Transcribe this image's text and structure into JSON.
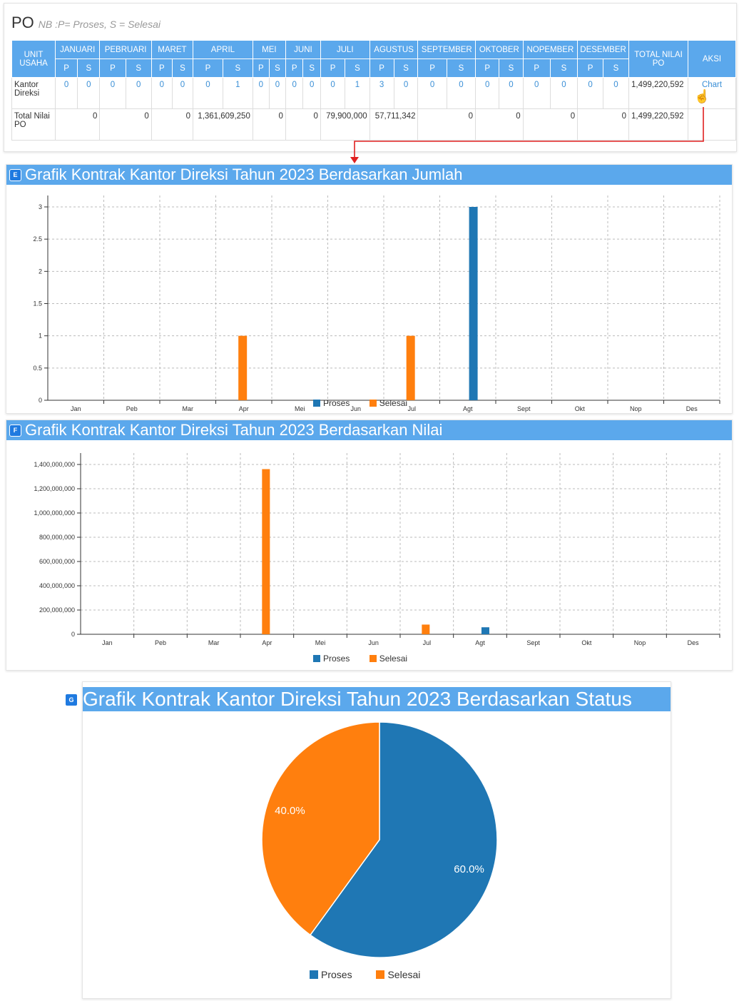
{
  "po": {
    "title": "PO",
    "note": "NB :P= Proses, S = Selesai",
    "unit_header": "UNIT USAHA",
    "months": [
      "JANUARI",
      "PEBRUARI",
      "MARET",
      "APRIL",
      "MEI",
      "JUNI",
      "JULI",
      "AGUSTUS",
      "SEPTEMBER",
      "OKTOBER",
      "NOPEMBER",
      "DESEMBER"
    ],
    "p_label": "P",
    "s_label": "S",
    "total_header": "TOTAL NILAI PO",
    "aksi_header": "AKSI",
    "row1_label": "Kantor Direksi",
    "row1_values": [
      "0",
      "0",
      "0",
      "0",
      "0",
      "0",
      "0",
      "1",
      "0",
      "0",
      "0",
      "0",
      "0",
      "1",
      "3",
      "0",
      "0",
      "0",
      "0",
      "0",
      "0",
      "0",
      "0",
      "0"
    ],
    "row1_total": "1,499,220,592",
    "row1_action": "Chart",
    "row2_label": "Total Nilai PO",
    "row2_values": [
      "0",
      "0",
      "0",
      "1,361,609,250",
      "0",
      "0",
      "79,900,000",
      "57,711,342",
      "0",
      "0",
      "0",
      "0"
    ],
    "row2_total": "1,499,220,592"
  },
  "panels": {
    "jumlah": {
      "badge": "E",
      "title": "Grafik Kontrak Kantor Direksi Tahun 2023 Berdasarkan Jumlah"
    },
    "nilai": {
      "badge": "F",
      "title": "Grafik Kontrak Kantor Direksi Tahun 2023 Berdasarkan Nilai"
    },
    "status": {
      "badge": "G",
      "title": "Grafik Kontrak Kantor Direksi Tahun 2023 Berdasarkan Status"
    }
  },
  "colors": {
    "proses": "#1f77b4",
    "selesai": "#ff7f0e",
    "header": "#5ba8ec",
    "arrow": "#e02020"
  },
  "legend": {
    "proses": "Proses",
    "selesai": "Selesai"
  },
  "chart_data": [
    {
      "type": "bar",
      "categories": [
        "Jan",
        "Peb",
        "Mar",
        "Apr",
        "Mei",
        "Jun",
        "Jul",
        "Agt",
        "Sept",
        "Okt",
        "Nop",
        "Des"
      ],
      "series": [
        {
          "name": "Proses",
          "values": [
            0,
            0,
            0,
            0,
            0,
            0,
            0,
            3,
            0,
            0,
            0,
            0
          ]
        },
        {
          "name": "Selesai",
          "values": [
            0,
            0,
            0,
            1,
            0,
            0,
            1,
            0,
            0,
            0,
            0,
            0
          ]
        }
      ],
      "ylim": [
        0,
        3
      ],
      "yticks": [
        "0",
        "0.5",
        "1",
        "1.5",
        "2",
        "2.5",
        "3"
      ],
      "grid": true,
      "legend_position": "bottom"
    },
    {
      "type": "bar",
      "categories": [
        "Jan",
        "Peb",
        "Mar",
        "Apr",
        "Mei",
        "Jun",
        "Jul",
        "Agt",
        "Sept",
        "Okt",
        "Nop",
        "Des"
      ],
      "series": [
        {
          "name": "Proses",
          "values": [
            0,
            0,
            0,
            0,
            0,
            0,
            0,
            57711342,
            0,
            0,
            0,
            0
          ]
        },
        {
          "name": "Selesai",
          "values": [
            0,
            0,
            0,
            1361609250,
            0,
            0,
            79900000,
            0,
            0,
            0,
            0,
            0
          ]
        }
      ],
      "ylim": [
        0,
        1400000000
      ],
      "yticks": [
        "0",
        "200,000,000",
        "400,000,000",
        "600,000,000",
        "800,000,000",
        "1,000,000,000",
        "1,200,000,000",
        "1,400,000,000"
      ],
      "grid": true,
      "legend_position": "bottom"
    },
    {
      "type": "pie",
      "labels": [
        "Proses",
        "Selesai"
      ],
      "values": [
        60.0,
        40.0
      ],
      "value_labels": [
        "60.0%",
        "40.0%"
      ],
      "legend_position": "bottom"
    }
  ]
}
